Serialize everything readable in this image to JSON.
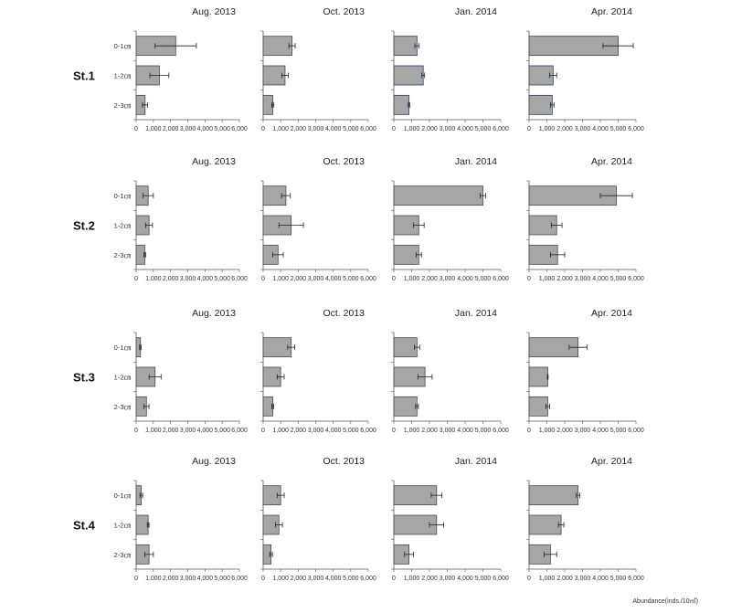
{
  "figure": {
    "axis_unit_label": "Abundance(inds./10㎡)"
  },
  "chart_data": {
    "type": "bar",
    "orientation": "horizontal",
    "periods": [
      "Aug. 2013",
      "Oct. 2013",
      "Jan. 2014",
      "Apr. 2014"
    ],
    "stations": [
      "St.1",
      "St.2",
      "St.3",
      "St.4"
    ],
    "depths": [
      "0-1㎝",
      "1-2㎝",
      "2-3㎝"
    ],
    "x_ticks": [
      "0",
      "1,000",
      "2,000",
      "3,000",
      "4,000",
      "5,000",
      "6,000"
    ],
    "xlim": [
      0,
      6000
    ],
    "xlabel": "Abundance(inds./10㎡)",
    "grid": false,
    "bar_color": "#a6a6a6",
    "edge_color_default": "#4a4a4a",
    "edge_color_highlight": "#2f3e6a",
    "panels": [
      {
        "station": "St.1",
        "period": "Aug. 2013",
        "values": [
          2300,
          1350,
          520
        ],
        "errors": [
          1200,
          550,
          150
        ]
      },
      {
        "station": "St.1",
        "period": "Oct. 2013",
        "values": [
          1650,
          1250,
          550
        ],
        "errors": [
          180,
          180,
          60
        ]
      },
      {
        "station": "St.1",
        "period": "Jan. 2014",
        "values": [
          1300,
          1650,
          850
        ],
        "errors": [
          120,
          80,
          40
        ],
        "edge": "highlight"
      },
      {
        "station": "St.1",
        "period": "Apr. 2014",
        "values": [
          5000,
          1350,
          1300
        ],
        "errors": [
          850,
          200,
          100
        ],
        "edge": "highlight"
      },
      {
        "station": "St.2",
        "period": "Aug. 2013",
        "values": [
          700,
          750,
          500
        ],
        "errors": [
          300,
          200,
          50
        ]
      },
      {
        "station": "St.2",
        "period": "Oct. 2013",
        "values": [
          1300,
          1600,
          850
        ],
        "errors": [
          250,
          700,
          300
        ]
      },
      {
        "station": "St.2",
        "period": "Jan. 2014",
        "values": [
          5000,
          1400,
          1400
        ],
        "errors": [
          150,
          300,
          150
        ]
      },
      {
        "station": "St.2",
        "period": "Apr. 2014",
        "values": [
          4900,
          1550,
          1600
        ],
        "errors": [
          900,
          300,
          400
        ]
      },
      {
        "station": "St.3",
        "period": "Aug. 2013",
        "values": [
          250,
          1100,
          600
        ],
        "errors": [
          50,
          350,
          150
        ]
      },
      {
        "station": "St.3",
        "period": "Oct. 2013",
        "values": [
          1600,
          1000,
          550
        ],
        "errors": [
          200,
          200,
          50
        ]
      },
      {
        "station": "St.3",
        "period": "Jan. 2014",
        "values": [
          1300,
          1750,
          1300
        ],
        "errors": [
          150,
          400,
          80
        ]
      },
      {
        "station": "St.3",
        "period": "Apr. 2014",
        "values": [
          2750,
          1050,
          1050
        ],
        "errors": [
          500,
          20,
          100
        ]
      },
      {
        "station": "St.4",
        "period": "Aug. 2013",
        "values": [
          300,
          700,
          750
        ],
        "errors": [
          80,
          50,
          250
        ]
      },
      {
        "station": "St.4",
        "period": "Oct. 2013",
        "values": [
          1000,
          900,
          450
        ],
        "errors": [
          200,
          200,
          80
        ]
      },
      {
        "station": "St.4",
        "period": "Jan. 2014",
        "values": [
          2400,
          2400,
          850
        ],
        "errors": [
          300,
          400,
          250
        ]
      },
      {
        "station": "St.4",
        "period": "Apr. 2014",
        "values": [
          2750,
          1800,
          1200
        ],
        "errors": [
          100,
          150,
          350
        ]
      }
    ]
  }
}
